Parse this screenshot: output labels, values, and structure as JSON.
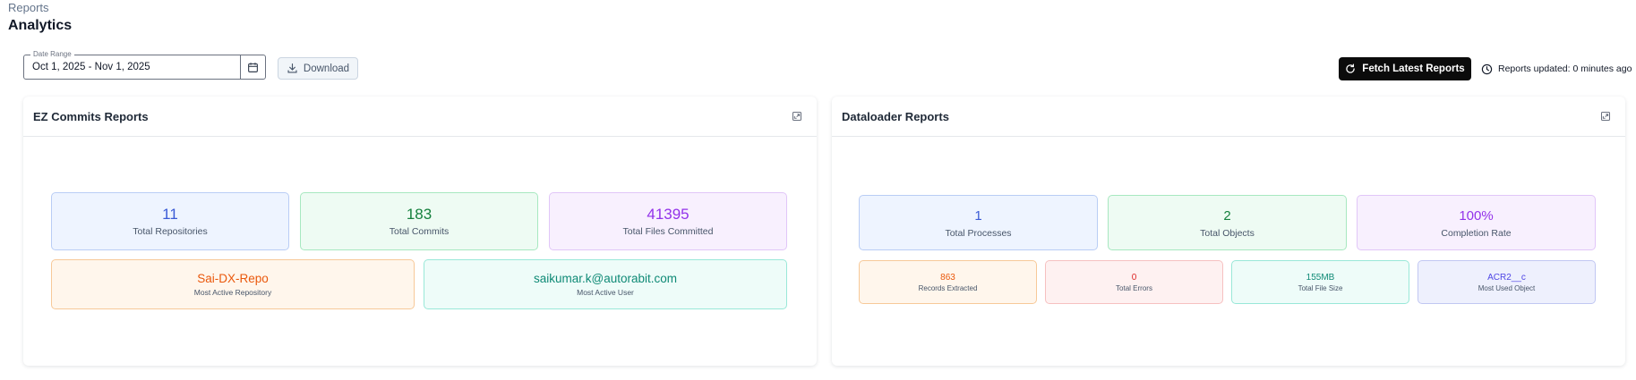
{
  "header": {
    "breadcrumb": "Reports",
    "title": "Analytics"
  },
  "toolbar": {
    "date_range_label": "Date Range",
    "date_range_value": "Oct 1, 2025 - Nov 1, 2025",
    "download_label": "Download",
    "fetch_label": "Fetch Latest Reports",
    "updated_text": "Reports updated: 0 minutes ago"
  },
  "ez_commits": {
    "title": "EZ Commits Reports",
    "stats": [
      {
        "value": "11",
        "label": "Total Repositories",
        "color": "#3b5bd6"
      },
      {
        "value": "183",
        "label": "Total Commits",
        "color": "#15803d"
      },
      {
        "value": "41395",
        "label": "Total Files Committed",
        "color": "#9333ea"
      }
    ],
    "highlights": [
      {
        "value": "Sai-DX-Repo",
        "label": "Most Active Repository",
        "color": "#ea580c"
      },
      {
        "value": "saikumar.k@autorabit.com",
        "label": "Most Active User",
        "color": "#0f8a76"
      }
    ]
  },
  "dataloader": {
    "title": "Dataloader Reports",
    "stats": [
      {
        "value": "1",
        "label": "Total Processes",
        "color": "#3b5bd6"
      },
      {
        "value": "2",
        "label": "Total Objects",
        "color": "#15803d"
      },
      {
        "value": "100%",
        "label": "Completion Rate",
        "color": "#9333ea"
      }
    ],
    "details": [
      {
        "value": "863",
        "label": "Records Extracted",
        "color": "#ea580c"
      },
      {
        "value": "0",
        "label": "Total Errors",
        "color": "#dc2626"
      },
      {
        "value": "155MB",
        "label": "Total File Size",
        "color": "#0f8a76"
      },
      {
        "value": "ACR2__c",
        "label": "Most Used Object",
        "color": "#4f46e5"
      }
    ]
  }
}
